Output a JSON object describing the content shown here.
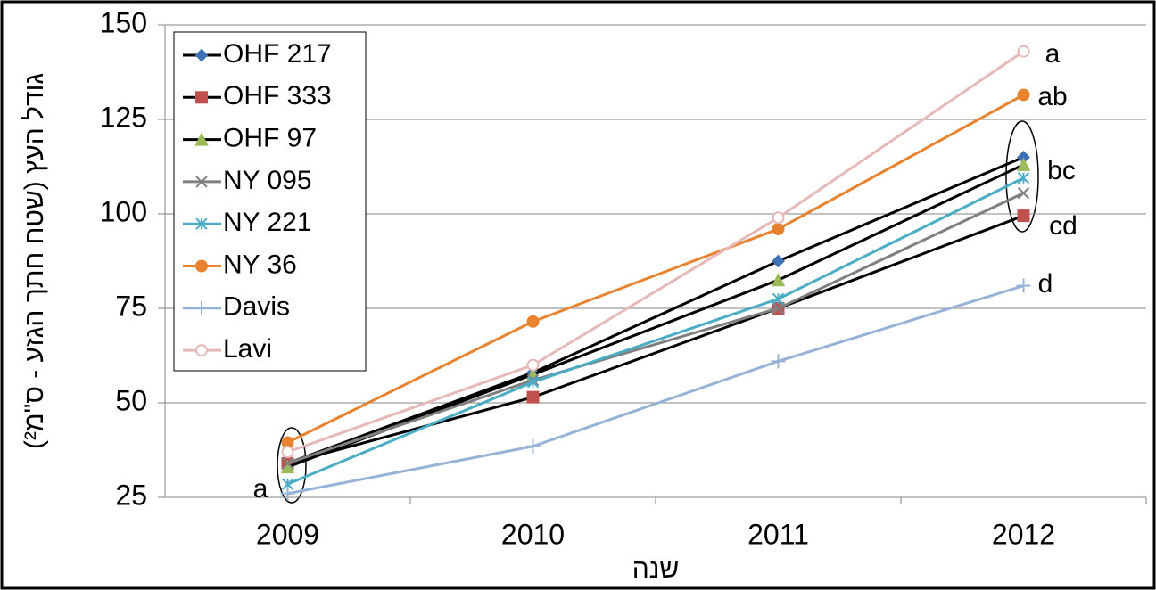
{
  "chart_data": {
    "type": "line",
    "y_label": "גודל העץ (שטח חתך הגזע - ס\"מ²)",
    "x_label": "שנה",
    "categories": [
      "2009",
      "2010",
      "2011",
      "2012"
    ],
    "ylim": [
      25,
      150
    ],
    "yticks": [
      25,
      50,
      75,
      100,
      125,
      150
    ],
    "grid": true,
    "legend": "top-left",
    "series": [
      {
        "name": "OHF 217",
        "color": "#000000",
        "marker_color": "#3f6fb5",
        "marker": "diamond",
        "values": [
          34,
          58,
          87.5,
          115
        ]
      },
      {
        "name": "OHF 333",
        "color": "#000000",
        "marker_color": "#c0504d",
        "marker": "square",
        "values": [
          34,
          51.5,
          75,
          99.5
        ]
      },
      {
        "name": "OHF 97",
        "color": "#000000",
        "marker_color": "#9bbb59",
        "marker": "triangle",
        "values": [
          33,
          57.5,
          82.5,
          113
        ]
      },
      {
        "name": "NY 095",
        "color": "#7f7f7f",
        "marker_color": "#7f7f7f",
        "marker": "x",
        "values": [
          34,
          56,
          75,
          105.5
        ]
      },
      {
        "name": "NY 221",
        "color": "#4bacc6",
        "marker_color": "#4bacc6",
        "marker": "asterisk",
        "values": [
          28.5,
          55.5,
          77.5,
          109.5
        ]
      },
      {
        "name": "NY 36",
        "color": "#e8822f",
        "marker_color": "#e8822f",
        "marker": "circle",
        "values": [
          39.5,
          71.5,
          96,
          131.5
        ]
      },
      {
        "name": "Davis",
        "color": "#95b3d7",
        "marker_color": "#95b3d7",
        "marker": "plus",
        "values": [
          26,
          38.5,
          61,
          81
        ]
      },
      {
        "name": "Lavi",
        "color": "#e6b9b8",
        "marker_color": "#e6b9b8",
        "marker": "open-circle",
        "values": [
          37,
          60,
          99,
          143
        ]
      }
    ],
    "annotations": [
      "a",
      "a",
      "ab",
      "bc",
      "cd",
      "d"
    ]
  }
}
